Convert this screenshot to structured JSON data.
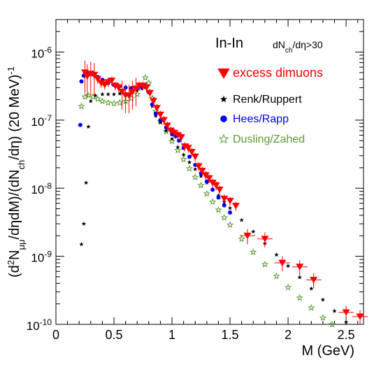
{
  "chart_data": {
    "type": "scatter",
    "title": "",
    "annotation": {
      "system": "In-In",
      "cut": "dN_ch/dη>30"
    },
    "xlabel": "M (GeV)",
    "ylabel": "(d²N_μμ/dηdM)/(dN_ch/dη) (20 MeV)⁻¹",
    "xlim": [
      0,
      2.65
    ],
    "ylim": [
      1e-10,
      3e-06
    ],
    "yscale": "log",
    "x_ticks": [
      0,
      0.5,
      1,
      1.5,
      2,
      2.5
    ],
    "x_tick_labels": [
      "0",
      "0.5",
      "1",
      "1.5",
      "2",
      "2.5"
    ],
    "y_ticks": [
      1e-10,
      1e-09,
      1e-08,
      1e-07,
      1e-06
    ],
    "y_tick_labels": [
      {
        "base": "10",
        "exp": "-10"
      },
      {
        "base": "10",
        "exp": "-9"
      },
      {
        "base": "10",
        "exp": "-8"
      },
      {
        "base": "10",
        "exp": "-7"
      },
      {
        "base": "10",
        "exp": "-6"
      }
    ],
    "grid": false,
    "legend_position": "top-right",
    "series": [
      {
        "name": "excess dimuons",
        "color": "#ff0000",
        "marker": "triangle-down",
        "points": [
          [
            0.25,
            5e-07
          ],
          [
            0.27,
            4.4e-07
          ],
          [
            0.3,
            4.8e-07
          ],
          [
            0.33,
            4.6e-07
          ],
          [
            0.36,
            4e-07
          ],
          [
            0.39,
            3.5e-07
          ],
          [
            0.42,
            3.3e-07
          ],
          [
            0.45,
            3.6e-07
          ],
          [
            0.48,
            3.8e-07
          ],
          [
            0.51,
            3.2e-07
          ],
          [
            0.54,
            3e-07
          ],
          [
            0.57,
            2.6e-07
          ],
          [
            0.6,
            2.3e-07
          ],
          [
            0.63,
            2.3e-07
          ],
          [
            0.66,
            2.6e-07
          ],
          [
            0.69,
            2.9e-07
          ],
          [
            0.72,
            3.2e-07
          ],
          [
            0.75,
            3.2e-07
          ],
          [
            0.78,
            3e-07
          ],
          [
            0.81,
            2.5e-07
          ],
          [
            0.84,
            1.9e-07
          ],
          [
            0.87,
            1.5e-07
          ],
          [
            0.9,
            1.2e-07
          ],
          [
            0.93,
            1e-07
          ],
          [
            0.96,
            8.3e-08
          ],
          [
            0.99,
            7e-08
          ],
          [
            1.02,
            6.5e-08
          ],
          [
            1.05,
            6e-08
          ],
          [
            1.08,
            5.6e-08
          ],
          [
            1.11,
            4.1e-08
          ],
          [
            1.14,
            3.9e-08
          ],
          [
            1.17,
            3.4e-08
          ],
          [
            1.2,
            2.9e-08
          ],
          [
            1.23,
            2.1e-08
          ],
          [
            1.26,
            1.8e-08
          ],
          [
            1.29,
            1.55e-08
          ],
          [
            1.32,
            1.4e-08
          ],
          [
            1.35,
            1.2e-08
          ],
          [
            1.38,
            1.1e-08
          ],
          [
            1.41,
            9.5e-09
          ],
          [
            1.45,
            7e-09
          ],
          [
            1.5,
            6.5e-09
          ],
          [
            1.55,
            5.5e-09
          ],
          [
            1.65,
            2e-09
          ],
          [
            1.8,
            1.8e-09
          ],
          [
            1.95,
            8e-10
          ],
          [
            2.1,
            7e-10
          ],
          [
            2.22,
            4.5e-10
          ],
          [
            2.5,
            1.5e-10
          ],
          [
            2.62,
            1.3e-10
          ]
        ]
      },
      {
        "name": "Renk/Ruppert",
        "color": "#000000",
        "marker": "star-filled",
        "points": [
          [
            0.22,
            1.5e-09
          ],
          [
            0.24,
            3e-09
          ],
          [
            0.26,
            1.2e-08
          ],
          [
            0.28,
            8e-08
          ],
          [
            0.3,
            1.9e-07
          ],
          [
            0.34,
            2.3e-07
          ],
          [
            0.4,
            2.4e-07
          ],
          [
            0.45,
            2.4e-07
          ],
          [
            0.5,
            2.4e-07
          ],
          [
            0.55,
            2.45e-07
          ],
          [
            0.6,
            2.5e-07
          ],
          [
            0.65,
            2.6e-07
          ],
          [
            0.7,
            2.75e-07
          ],
          [
            0.74,
            2.9e-07
          ],
          [
            0.77,
            3e-07
          ],
          [
            0.8,
            2.5e-07
          ],
          [
            0.83,
            1.6e-07
          ],
          [
            0.86,
            1.15e-07
          ],
          [
            0.9,
            9.2e-08
          ],
          [
            0.95,
            7e-08
          ],
          [
            1.0,
            5.3e-08
          ],
          [
            1.05,
            4e-08
          ],
          [
            1.1,
            3.1e-08
          ],
          [
            1.15,
            2.4e-08
          ],
          [
            1.2,
            1.9e-08
          ],
          [
            1.25,
            1.5e-08
          ],
          [
            1.3,
            1.2e-08
          ],
          [
            1.35,
            9.6e-09
          ],
          [
            1.4,
            7.8e-09
          ],
          [
            1.45,
            6.3e-09
          ],
          [
            1.5,
            5.1e-09
          ],
          [
            1.6,
            3.4e-09
          ],
          [
            1.7,
            2.3e-09
          ],
          [
            1.8,
            1.55e-09
          ],
          [
            1.9,
            1.05e-09
          ],
          [
            2.0,
            7.2e-10
          ],
          [
            2.1,
            4.9e-10
          ],
          [
            2.2,
            3.35e-10
          ],
          [
            2.3,
            2.3e-10
          ],
          [
            2.4,
            1.57e-10
          ],
          [
            2.5,
            1.08e-10
          ],
          [
            2.55,
            9e-11
          ]
        ]
      },
      {
        "name": "Hees/Rapp",
        "color": "#0000ff",
        "marker": "circle",
        "points": [
          [
            0.21,
            8.5e-08
          ],
          [
            0.22,
            3.7e-07
          ],
          [
            0.24,
            4.5e-07
          ],
          [
            0.27,
            4.8e-07
          ],
          [
            0.3,
            4.75e-07
          ],
          [
            0.33,
            4.6e-07
          ],
          [
            0.36,
            4.3e-07
          ],
          [
            0.4,
            3.9e-07
          ],
          [
            0.45,
            3.5e-07
          ],
          [
            0.5,
            3.3e-07
          ],
          [
            0.55,
            3.15e-07
          ],
          [
            0.6,
            3e-07
          ],
          [
            0.65,
            2.95e-07
          ],
          [
            0.7,
            3e-07
          ],
          [
            0.74,
            3.05e-07
          ],
          [
            0.77,
            3.2e-07
          ],
          [
            0.8,
            2.6e-07
          ],
          [
            0.83,
            1.7e-07
          ],
          [
            0.86,
            1.25e-07
          ],
          [
            0.9,
            1e-07
          ],
          [
            0.95,
            7.8e-08
          ],
          [
            1.0,
            6.2e-08
          ],
          [
            1.03,
            5.8e-08
          ],
          [
            1.06,
            5e-08
          ],
          [
            1.1,
            3.9e-08
          ],
          [
            1.15,
            2.9e-08
          ],
          [
            1.2,
            2.2e-08
          ],
          [
            1.25,
            1.65e-08
          ],
          [
            1.3,
            1.25e-08
          ],
          [
            1.35,
            9.5e-09
          ],
          [
            1.4,
            7.3e-09
          ],
          [
            1.45,
            5.6e-09
          ],
          [
            1.5,
            4.4e-09
          ]
        ]
      },
      {
        "name": "Dusling/Zahed",
        "color": "#5a9a32",
        "marker": "star-open",
        "points": [
          [
            0.22,
            1.6e-07
          ],
          [
            0.25,
            2.2e-07
          ],
          [
            0.28,
            2.3e-07
          ],
          [
            0.32,
            2.2e-07
          ],
          [
            0.36,
            2.05e-07
          ],
          [
            0.4,
            1.9e-07
          ],
          [
            0.45,
            1.8e-07
          ],
          [
            0.5,
            1.75e-07
          ],
          [
            0.55,
            1.8e-07
          ],
          [
            0.6,
            1.9e-07
          ],
          [
            0.65,
            2.1e-07
          ],
          [
            0.7,
            2.4e-07
          ],
          [
            0.74,
            3.2e-07
          ],
          [
            0.77,
            4.2e-07
          ],
          [
            0.8,
            3.5e-07
          ],
          [
            0.83,
            2.1e-07
          ],
          [
            0.86,
            1.35e-07
          ],
          [
            0.9,
            9.5e-08
          ],
          [
            0.95,
            6.8e-08
          ],
          [
            1.0,
            4.9e-08
          ],
          [
            1.05,
            3.6e-08
          ],
          [
            1.1,
            2.65e-08
          ],
          [
            1.15,
            1.95e-08
          ],
          [
            1.2,
            1.45e-08
          ],
          [
            1.25,
            1.1e-08
          ],
          [
            1.3,
            8.3e-09
          ],
          [
            1.35,
            6.3e-09
          ],
          [
            1.4,
            4.8e-09
          ],
          [
            1.45,
            3.7e-09
          ],
          [
            1.5,
            2.9e-09
          ],
          [
            1.6,
            1.8e-09
          ],
          [
            1.7,
            1.15e-09
          ],
          [
            1.8,
            7.6e-10
          ],
          [
            1.9,
            5.1e-10
          ],
          [
            2.0,
            3.5e-10
          ],
          [
            2.1,
            2.45e-10
          ],
          [
            2.2,
            1.75e-10
          ],
          [
            2.3,
            1.25e-10
          ],
          [
            2.38,
            1e-10
          ]
        ]
      }
    ]
  }
}
